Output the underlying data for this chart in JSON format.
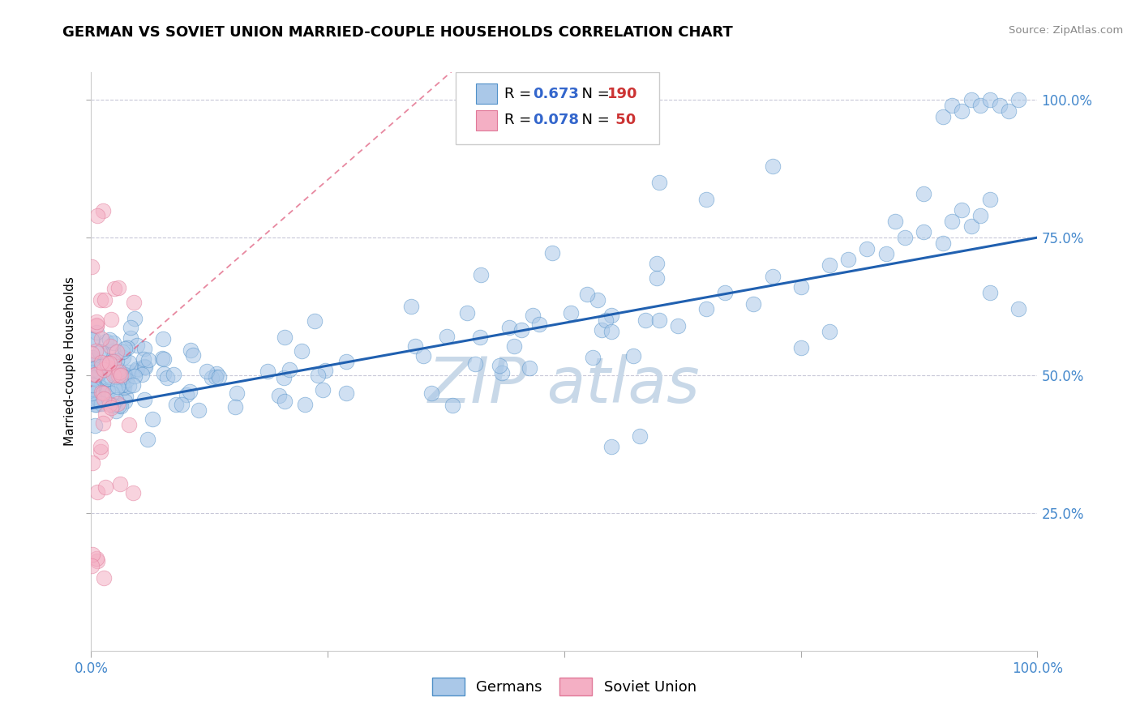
{
  "title": "GERMAN VS SOVIET UNION MARRIED-COUPLE HOUSEHOLDS CORRELATION CHART",
  "source": "Source: ZipAtlas.com",
  "ylabel": "Married-couple Households",
  "watermark": "ZIP atlas",
  "blue_R": 0.673,
  "blue_N": 190,
  "pink_R": 0.078,
  "pink_N": 50,
  "blue_color": "#aac8e8",
  "blue_edge_color": "#5090c8",
  "blue_line_color": "#2060b0",
  "pink_color": "#f4afc4",
  "pink_edge_color": "#e07898",
  "pink_line_color": "#e06080",
  "background_color": "#ffffff",
  "grid_color": "#c8c8d8",
  "xlim": [
    0.0,
    1.0
  ],
  "ylim": [
    0.0,
    1.05
  ],
  "title_fontsize": 13,
  "axis_label_fontsize": 11,
  "tick_label_color": "#4488cc",
  "legend_R_color": "#3366cc",
  "legend_N_color": "#cc3333",
  "watermark_color": "#c8d8e8"
}
